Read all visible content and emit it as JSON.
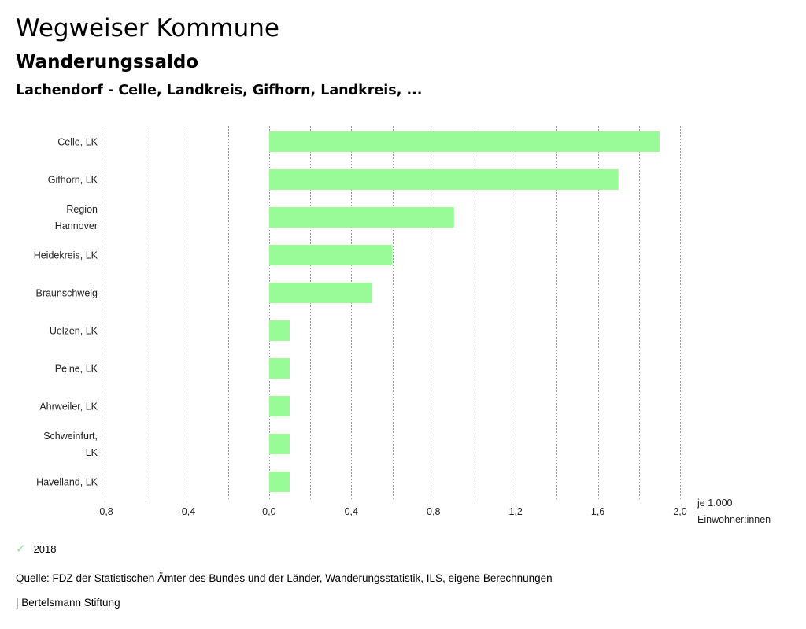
{
  "header": {
    "title": "Wegweiser Kommune",
    "subtitle": "Wanderungssaldo",
    "region": "Lachendorf - Celle, Landkreis, Gifhorn, Landkreis, ..."
  },
  "chart_data": {
    "type": "bar",
    "orientation": "horizontal",
    "categories": [
      "Celle, LK",
      "Gifhorn, LK",
      "Region Hannover",
      "Heidekreis, LK",
      "Braunschweig",
      "Uelzen, LK",
      "Peine, LK",
      "Ahrweiler, LK",
      "Schweinfurt, LK",
      "Havelland, LK"
    ],
    "category_lines": [
      [
        "Celle, LK"
      ],
      [
        "Gifhorn, LK"
      ],
      [
        "Region",
        "Hannover"
      ],
      [
        "Heidekreis, LK"
      ],
      [
        "Braunschweig"
      ],
      [
        "Uelzen, LK"
      ],
      [
        "Peine, LK"
      ],
      [
        "Ahrweiler, LK"
      ],
      [
        "Schweinfurt,",
        "LK"
      ],
      [
        "Havelland, LK"
      ]
    ],
    "series": [
      {
        "name": "2018",
        "values": [
          1.9,
          1.7,
          0.9,
          0.6,
          0.5,
          0.1,
          0.1,
          0.1,
          0.1,
          0.1
        ]
      }
    ],
    "xlim": [
      -0.8,
      2.0
    ],
    "x_ticks": [
      -0.8,
      -0.4,
      0.0,
      0.4,
      0.8,
      1.2,
      1.6,
      2.0
    ],
    "x_tick_labels": [
      "-0,8",
      "-0,4",
      "0,0",
      "0,4",
      "0,8",
      "1,2",
      "1,6",
      "2,0"
    ],
    "x_gridlines": [
      -0.8,
      -0.6,
      -0.4,
      -0.2,
      0.0,
      0.2,
      0.4,
      0.6,
      0.8,
      1.0,
      1.2,
      1.4,
      1.6,
      1.8,
      2.0
    ],
    "unit_label_lines": [
      "je 1.000",
      "Einwohner:innen"
    ],
    "grid": true,
    "bar_color": "#98fb98"
  },
  "legend": {
    "label": "2018",
    "icon": "check-icon",
    "color": "#98fb98"
  },
  "footer": {
    "source": "Quelle: FDZ der Statistischen Ämter des Bundes und der Länder, Wanderungsstatistik, ILS, eigene Berechnungen",
    "brand": "| Bertelsmann Stiftung"
  }
}
